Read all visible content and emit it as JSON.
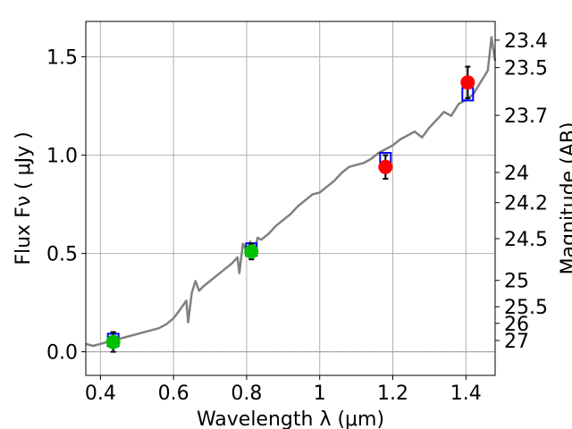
{
  "chart_data": {
    "type": "line",
    "xlabel": "Wavelength  λ (μm)",
    "ylabel": "Flux  Fν  ( μJy )",
    "ylabel_right": "Magnitude (AB)",
    "xlim": [
      0.36,
      1.48
    ],
    "ylim": [
      -0.12,
      1.68
    ],
    "grid": true,
    "x_ticks": [
      0.4,
      0.6,
      0.8,
      1.0,
      1.2,
      1.4
    ],
    "x_tick_labels": [
      "0.4",
      "0.6",
      "0.8",
      "1",
      "1.2",
      "1.4"
    ],
    "y_ticks": [
      0.0,
      0.5,
      1.0,
      1.5
    ],
    "y_tick_labels": [
      "0.0",
      "0.5",
      "1.0",
      "1.5"
    ],
    "mag_ticks": [
      23.4,
      23.5,
      23.7,
      24,
      24.2,
      24.5,
      25,
      25.5,
      26,
      27
    ],
    "mag_tick_labels": [
      "23.4",
      "23.5",
      "23.7",
      "24",
      "24.2",
      "24.5",
      "25",
      "25.5",
      "26",
      "27"
    ],
    "series": [
      {
        "name": "model-spectrum",
        "kind": "line",
        "color": "#808080",
        "x": [
          0.36,
          0.38,
          0.4,
          0.42,
          0.44,
          0.46,
          0.48,
          0.5,
          0.52,
          0.54,
          0.56,
          0.58,
          0.6,
          0.62,
          0.635,
          0.64,
          0.65,
          0.66,
          0.67,
          0.68,
          0.7,
          0.72,
          0.74,
          0.76,
          0.775,
          0.78,
          0.79,
          0.8,
          0.81,
          0.82,
          0.83,
          0.84,
          0.86,
          0.88,
          0.9,
          0.92,
          0.94,
          0.96,
          0.98,
          1.0,
          1.02,
          1.04,
          1.06,
          1.08,
          1.1,
          1.12,
          1.14,
          1.16,
          1.18,
          1.2,
          1.22,
          1.24,
          1.26,
          1.28,
          1.3,
          1.32,
          1.34,
          1.36,
          1.38,
          1.4,
          1.42,
          1.44,
          1.45,
          1.46,
          1.47,
          1.48
        ],
        "y": [
          0.04,
          0.03,
          0.04,
          0.05,
          0.06,
          0.07,
          0.08,
          0.09,
          0.1,
          0.11,
          0.12,
          0.14,
          0.17,
          0.22,
          0.26,
          0.15,
          0.3,
          0.36,
          0.31,
          0.33,
          0.36,
          0.39,
          0.42,
          0.45,
          0.48,
          0.4,
          0.55,
          0.51,
          0.56,
          0.49,
          0.58,
          0.57,
          0.6,
          0.64,
          0.67,
          0.7,
          0.74,
          0.77,
          0.8,
          0.81,
          0.84,
          0.87,
          0.91,
          0.94,
          0.95,
          0.96,
          0.98,
          1.01,
          1.03,
          1.05,
          1.08,
          1.1,
          1.12,
          1.09,
          1.14,
          1.18,
          1.22,
          1.2,
          1.26,
          1.28,
          1.31,
          1.37,
          1.4,
          1.43,
          1.6,
          1.48
        ]
      },
      {
        "name": "model-photometry",
        "kind": "box",
        "color": "#0000ff",
        "x": [
          0.435,
          0.813,
          1.18,
          1.405
        ],
        "y": [
          0.06,
          0.52,
          0.98,
          1.31
        ]
      },
      {
        "name": "observed-photometry",
        "kind": "scatter",
        "x": [
          0.435,
          0.813,
          1.18,
          1.405
        ],
        "y": [
          0.05,
          0.51,
          0.94,
          1.37
        ],
        "yerr": [
          0.05,
          0.04,
          0.06,
          0.08
        ],
        "colors": [
          "#00c000",
          "#00c000",
          "#ff0000",
          "#ff0000"
        ]
      }
    ]
  }
}
